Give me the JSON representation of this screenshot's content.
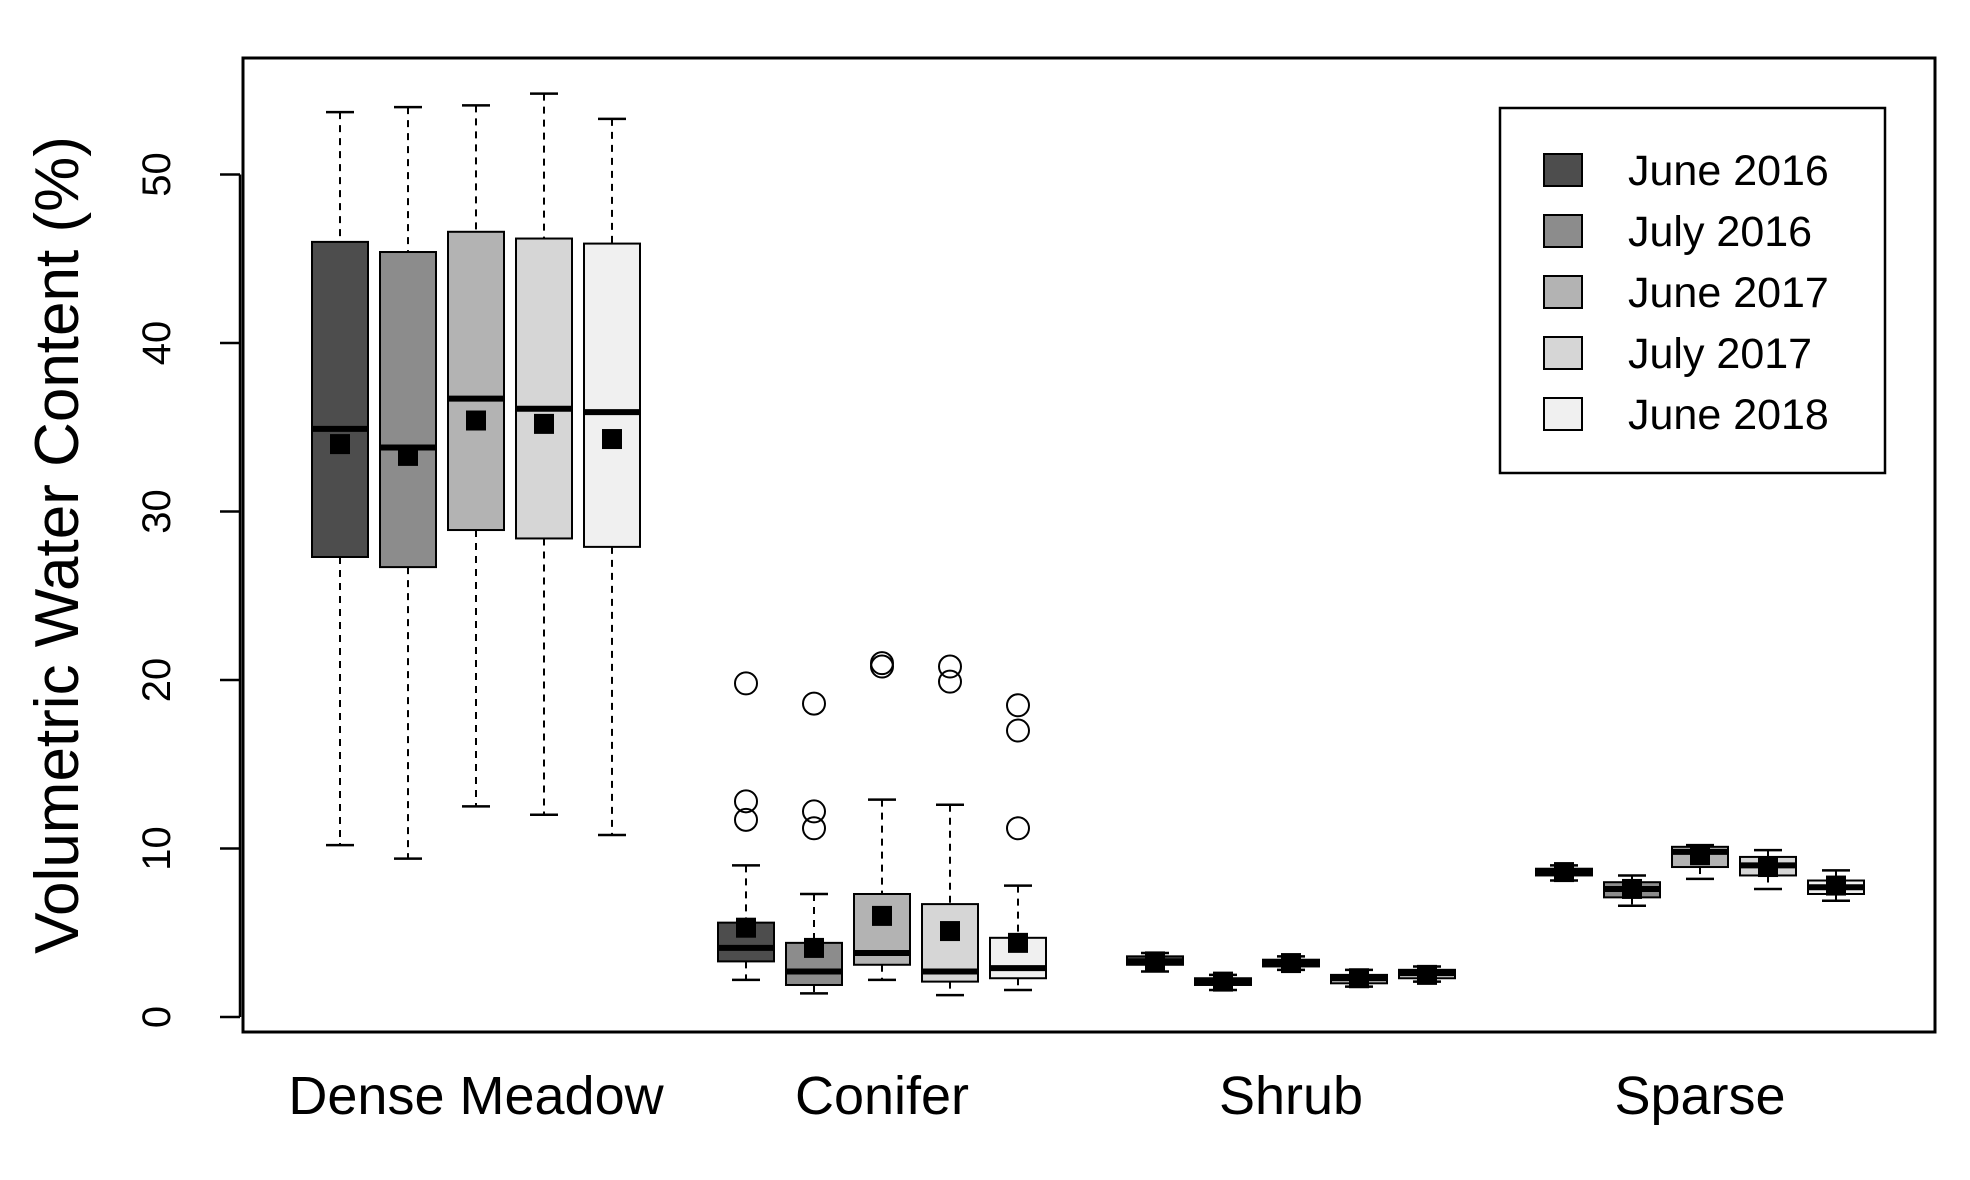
{
  "chart_data": {
    "type": "boxplot",
    "title": "",
    "xlabel": "",
    "ylabel": "Volumetric Water Content (%)",
    "ylim": [
      0,
      56
    ],
    "yticks": [
      "0",
      "10",
      "20",
      "30",
      "40",
      "50"
    ],
    "grid": false,
    "legend_position": "top-right",
    "categories": [
      "Dense Meadow",
      "Conifer",
      "Shrub",
      "Sparse"
    ],
    "series": [
      {
        "name": "June 2016",
        "color": "#4d4d4d",
        "boxes": [
          {
            "min": 10.2,
            "q1": 27.3,
            "median": 34.9,
            "q3": 46.0,
            "max": 53.7,
            "mean": 34.0,
            "outliers": []
          },
          {
            "min": 2.2,
            "q1": 3.3,
            "median": 4.1,
            "q3": 5.6,
            "max": 9.0,
            "mean": 5.3,
            "outliers": [
              19.8,
              12.8,
              11.7
            ]
          },
          {
            "min": 2.7,
            "q1": 3.1,
            "median": 3.3,
            "q3": 3.6,
            "max": 3.8,
            "mean": 3.3,
            "outliers": []
          },
          {
            "min": 8.1,
            "q1": 8.4,
            "median": 8.6,
            "q3": 8.8,
            "max": 9.0,
            "mean": 8.6,
            "outliers": []
          }
        ]
      },
      {
        "name": "July 2016",
        "color": "#8c8c8c",
        "boxes": [
          {
            "min": 9.4,
            "q1": 26.7,
            "median": 33.8,
            "q3": 45.4,
            "max": 54.0,
            "mean": 33.3,
            "outliers": []
          },
          {
            "min": 1.4,
            "q1": 1.9,
            "median": 2.7,
            "q3": 4.4,
            "max": 7.3,
            "mean": 4.1,
            "outliers": [
              18.6,
              12.2,
              11.2
            ]
          },
          {
            "min": 1.6,
            "q1": 1.9,
            "median": 2.1,
            "q3": 2.3,
            "max": 2.5,
            "mean": 2.1,
            "outliers": []
          },
          {
            "min": 6.6,
            "q1": 7.1,
            "median": 7.6,
            "q3": 8.0,
            "max": 8.4,
            "mean": 7.6,
            "outliers": []
          }
        ]
      },
      {
        "name": "June 2017",
        "color": "#b3b3b3",
        "boxes": [
          {
            "min": 12.5,
            "q1": 28.9,
            "median": 36.7,
            "q3": 46.6,
            "max": 54.1,
            "mean": 35.4,
            "outliers": []
          },
          {
            "min": 2.2,
            "q1": 3.1,
            "median": 3.8,
            "q3": 7.3,
            "max": 12.9,
            "mean": 6.0,
            "outliers": [
              21.0,
              20.8
            ]
          },
          {
            "min": 2.8,
            "q1": 3.0,
            "median": 3.2,
            "q3": 3.4,
            "max": 3.6,
            "mean": 3.2,
            "outliers": []
          },
          {
            "min": 8.2,
            "q1": 8.9,
            "median": 9.8,
            "q3": 10.1,
            "max": 10.2,
            "mean": 9.6,
            "outliers": []
          }
        ]
      },
      {
        "name": "July 2017",
        "color": "#d6d6d6",
        "boxes": [
          {
            "min": 12.0,
            "q1": 28.4,
            "median": 36.1,
            "q3": 46.2,
            "max": 54.8,
            "mean": 35.2,
            "outliers": []
          },
          {
            "min": 1.3,
            "q1": 2.1,
            "median": 2.7,
            "q3": 6.7,
            "max": 12.6,
            "mean": 5.1,
            "outliers": [
              20.8,
              19.9
            ]
          },
          {
            "min": 1.8,
            "q1": 2.0,
            "median": 2.3,
            "q3": 2.5,
            "max": 2.8,
            "mean": 2.3,
            "outliers": []
          },
          {
            "min": 7.6,
            "q1": 8.4,
            "median": 9.0,
            "q3": 9.5,
            "max": 9.9,
            "mean": 8.9,
            "outliers": []
          }
        ]
      },
      {
        "name": "June 2018",
        "color": "#f0f0f0",
        "boxes": [
          {
            "min": 10.8,
            "q1": 27.9,
            "median": 35.9,
            "q3": 45.9,
            "max": 53.3,
            "mean": 34.3,
            "outliers": []
          },
          {
            "min": 1.6,
            "q1": 2.3,
            "median": 2.9,
            "q3": 4.7,
            "max": 7.8,
            "mean": 4.4,
            "outliers": [
              18.5,
              17.0,
              11.2
            ]
          },
          {
            "min": 2.1,
            "q1": 2.3,
            "median": 2.6,
            "q3": 2.8,
            "max": 3.0,
            "mean": 2.5,
            "outliers": []
          },
          {
            "min": 6.9,
            "q1": 7.3,
            "median": 7.7,
            "q3": 8.1,
            "max": 8.7,
            "mean": 7.8,
            "outliers": []
          }
        ]
      }
    ]
  }
}
